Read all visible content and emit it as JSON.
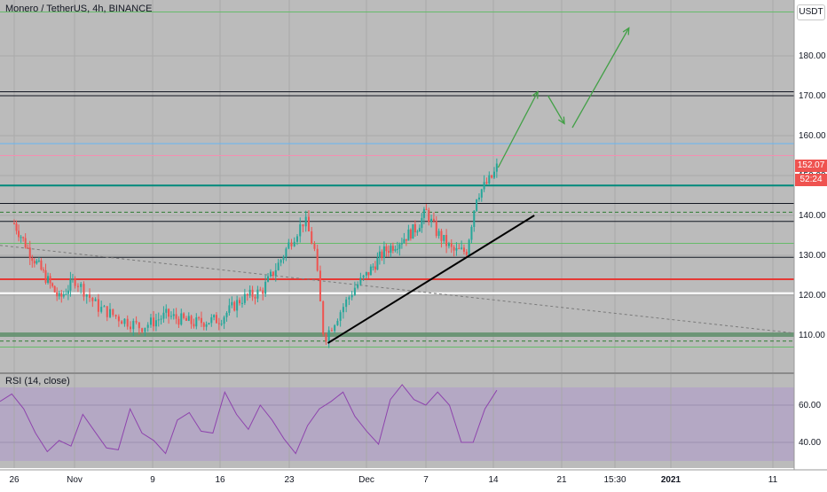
{
  "title": "Monero / TetherUS, 4h, BINANCE",
  "currency": "USDT",
  "current_price": "152.07",
  "countdown": "52:24",
  "colors": {
    "up": "#26a69a",
    "down": "#ef5350",
    "rsi_line": "#8e44ad",
    "rsi_band": "#7e57c2",
    "black_level": "#131722",
    "teal_level": "#00897b",
    "red_level": "#e53935",
    "blue_level": "#64b5f6",
    "green_level": "#66bb6a",
    "pink_level": "#f48fb1",
    "projection_arrow": "#43a047",
    "trendline": "#000000",
    "price_label_bg": "#ef5350"
  },
  "x_ticks": [
    "26",
    "Nov",
    "9",
    "16",
    "23",
    "Dec",
    "7",
    "14",
    "21",
    "15:30",
    "2021",
    "11"
  ],
  "price_ticks": [
    "110.00",
    "120.00",
    "130.00",
    "140.00",
    "150.00",
    "160.00",
    "170.00",
    "180.00"
  ],
  "rsi": {
    "title": "RSI (14, close)",
    "ticks": [
      "40.00",
      "60.00"
    ]
  },
  "chart_data": [
    {
      "type": "candlestick",
      "title": "Monero / TetherUS, 4h, BINANCE",
      "x_ticks": [
        "26",
        "Nov",
        "9",
        "16",
        "23",
        "Dec",
        "7",
        "14",
        "21",
        "15:30",
        "2021",
        "11"
      ],
      "ylim": [
        104,
        195
      ],
      "price_ticks": [
        110,
        120,
        130,
        140,
        150,
        160,
        170,
        180
      ],
      "last_price": 152.07,
      "approx_close_path": [
        {
          "x": "26",
          "y": 138
        },
        {
          "x": "Nov",
          "y": 125
        },
        {
          "x": "9",
          "y": 112
        },
        {
          "x": "16",
          "y": 114
        },
        {
          "x": "23",
          "y": 128
        },
        {
          "x": "23",
          "y": 139
        },
        {
          "x": "23",
          "y": 109
        },
        {
          "x": "Dec",
          "y": 125
        },
        {
          "x": "7",
          "y": 135
        },
        {
          "x": "7",
          "y": 141
        },
        {
          "x": "7",
          "y": 130
        },
        {
          "x": "14",
          "y": 148
        },
        {
          "x": "14",
          "y": 152.07
        }
      ],
      "horizontal_levels": [
        {
          "price": 191,
          "color": "green"
        },
        {
          "price": 171,
          "color": "black"
        },
        {
          "price": 170,
          "color": "black"
        },
        {
          "price": 158,
          "color": "blue"
        },
        {
          "price": 155,
          "color": "pink"
        },
        {
          "price": 147.5,
          "color": "teal"
        },
        {
          "price": 143,
          "color": "black"
        },
        {
          "price": 140.8,
          "color": "green-dashed"
        },
        {
          "price": 138.5,
          "color": "black"
        },
        {
          "price": 133,
          "color": "green"
        },
        {
          "price": 129.5,
          "color": "black"
        },
        {
          "price": 124,
          "color": "red"
        },
        {
          "price": 120.5,
          "color": "white"
        },
        {
          "price": 110,
          "color": "green-band"
        },
        {
          "price": 108.5,
          "color": "green-dashed"
        },
        {
          "price": 107,
          "color": "green"
        }
      ],
      "annotations": [
        {
          "type": "trendline",
          "from": {
            "x": "23",
            "y": 108
          },
          "to": {
            "x": "14",
            "y": 140
          }
        },
        {
          "type": "projection",
          "points": [
            {
              "x": "14",
              "y": 152
            },
            {
              "x": "14",
              "y": 171
            },
            {
              "x": "21",
              "y": 163
            },
            {
              "x": "21",
              "y": 163
            },
            {
              "x": "15:30",
              "y": 187
            }
          ]
        }
      ]
    },
    {
      "type": "line",
      "title": "RSI (14, close)",
      "ylim": [
        30,
        80
      ],
      "band": [
        30,
        70
      ],
      "y_ticks": [
        40,
        60
      ],
      "approx_values": [
        62,
        66,
        58,
        45,
        35,
        41,
        38,
        55,
        46,
        37,
        36,
        58,
        45,
        41,
        34,
        52,
        56,
        46,
        45,
        67,
        55,
        47,
        60,
        52,
        42,
        34,
        49,
        58,
        62,
        67,
        54,
        46,
        39,
        63,
        71,
        63,
        60,
        67,
        60,
        40,
        40,
        58,
        68
      ]
    }
  ]
}
